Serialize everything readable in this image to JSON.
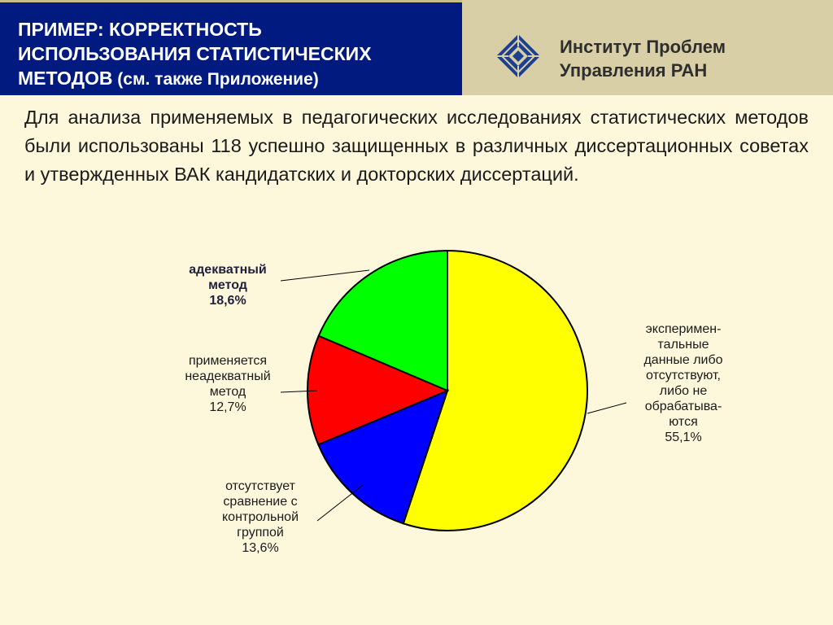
{
  "header": {
    "title_line1": "ПРИМЕР: КОРРЕКТНОСТЬ",
    "title_line2": "ИСПОЛЬЗОВАНИЯ СТАТИСТИЧЕСКИХ",
    "title_line3": "МЕТОДОВ",
    "title_sub": " (см. также Приложение)",
    "institute_line1": "Институт Проблем",
    "institute_line2": "Управления РАН",
    "logo_icon": "ipu-ran-logo-icon"
  },
  "intro_text": "Для анализа применяемых в педагогических исследованиях статистических методов были использованы 118 успешно защищенных в различных диссертационных советах и утвержденных ВАК кандидатских и докторских диссертаций.",
  "colors": {
    "header_bg": "#001a80",
    "header_right_bg": "#d8cfa6",
    "page_bg": "#fdf8dc"
  },
  "chart_data": {
    "type": "pie",
    "start_angle_deg": 0,
    "direction": "clockwise",
    "slices": [
      {
        "label_lines": [
          "эксперимен-",
          "тальные",
          "данные либо",
          "отсутствуют,",
          "либо не",
          "обрабатыва-",
          "ются"
        ],
        "value_label": "55,1%",
        "value": 55.1,
        "color": "#ffff00"
      },
      {
        "label_lines": [
          "отсутствует",
          "сравнение с",
          "контрольной",
          "группой"
        ],
        "value_label": "13,6%",
        "value": 13.6,
        "color": "#0000ff"
      },
      {
        "label_lines": [
          "применяется",
          "неадекватный",
          "метод"
        ],
        "value_label": "12,7%",
        "value": 12.7,
        "color": "#ff0000"
      },
      {
        "label_lines": [
          "адекватный",
          "метод"
        ],
        "value_label": "18,6%",
        "value": 18.6,
        "color": "#00ff00",
        "emphasis": true
      }
    ]
  }
}
